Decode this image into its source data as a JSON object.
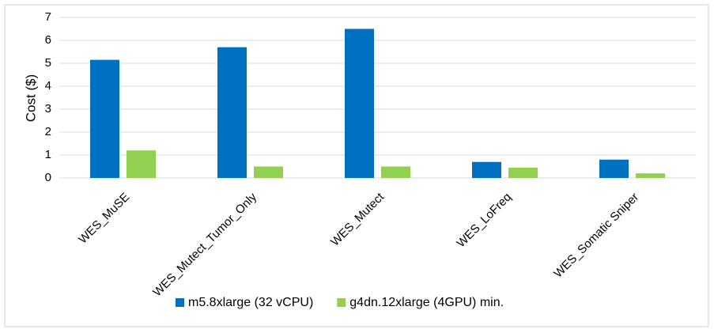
{
  "chart_data": {
    "type": "bar",
    "y_label": "Cost ($)",
    "categories": [
      "WES_MuSE",
      "WES_Mutect_Tumor_Only",
      "WES_Mutect",
      "WES_LoFreq",
      "WES_Somatic Sniper"
    ],
    "series": [
      {
        "name": "m5.8xlarge (32 vCPU)",
        "color": "#0070c0",
        "values": [
          5.15,
          5.7,
          6.5,
          0.7,
          0.8
        ]
      },
      {
        "name": "g4dn.12xlarge (4GPU) min.",
        "color": "#92d050",
        "values": [
          1.2,
          0.5,
          0.5,
          0.45,
          0.2
        ]
      }
    ],
    "ylim": [
      0,
      7
    ],
    "yticks": [
      0,
      1,
      2,
      3,
      4,
      5,
      6,
      7
    ],
    "grid": true,
    "legend": "bottom"
  }
}
